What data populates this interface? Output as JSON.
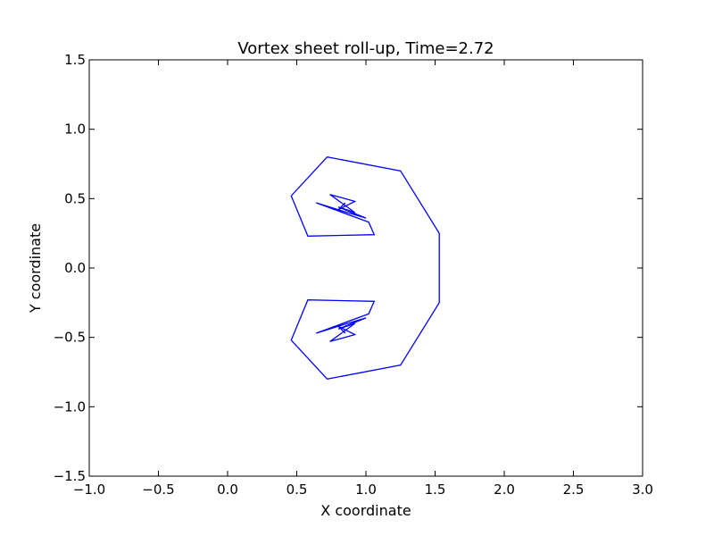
{
  "chart_data": {
    "type": "line",
    "title": "Vortex sheet roll-up, Time=2.72",
    "xlabel": "X coordinate",
    "ylabel": "Y coordinate",
    "xlim": [
      -1.0,
      3.0
    ],
    "ylim": [
      -1.5,
      1.5
    ],
    "grid": false,
    "xticks": [
      -1.0,
      -0.5,
      0.0,
      0.5,
      1.0,
      1.5,
      2.0,
      2.5,
      3.0
    ],
    "xtick_labels": [
      "−1.0",
      "−0.5",
      "0.0",
      "0.5",
      "1.0",
      "1.5",
      "2.0",
      "2.5",
      "3.0"
    ],
    "yticks": [
      -1.5,
      -1.0,
      -0.5,
      0.0,
      0.5,
      1.0,
      1.5
    ],
    "ytick_labels": [
      "−1.5",
      "−1.0",
      "−0.5",
      "0.0",
      "0.5",
      "1.0",
      "1.5"
    ],
    "line_color": "#0000ff",
    "series": [
      {
        "x": [
          0.8,
          0.92,
          0.74,
          0.92,
          0.8,
          1.0,
          0.8,
          0.85,
          0.8,
          0.64,
          1.02,
          1.06,
          0.58,
          0.46,
          0.72,
          1.25,
          1.53,
          1.53,
          1.25,
          0.72,
          0.46,
          0.58,
          1.06,
          1.02,
          0.64,
          0.8,
          0.85,
          0.8,
          1.0,
          0.8,
          0.92,
          0.74,
          0.92,
          0.8
        ],
        "y": [
          0.42,
          0.48,
          0.53,
          0.4,
          0.44,
          0.36,
          0.42,
          0.47,
          0.42,
          0.47,
          0.33,
          0.24,
          0.23,
          0.52,
          0.8,
          0.7,
          0.25,
          -0.25,
          -0.7,
          -0.8,
          -0.52,
          -0.23,
          -0.24,
          -0.33,
          -0.47,
          -0.42,
          -0.47,
          -0.42,
          -0.36,
          -0.44,
          -0.4,
          -0.53,
          -0.48,
          -0.42
        ]
      }
    ]
  }
}
